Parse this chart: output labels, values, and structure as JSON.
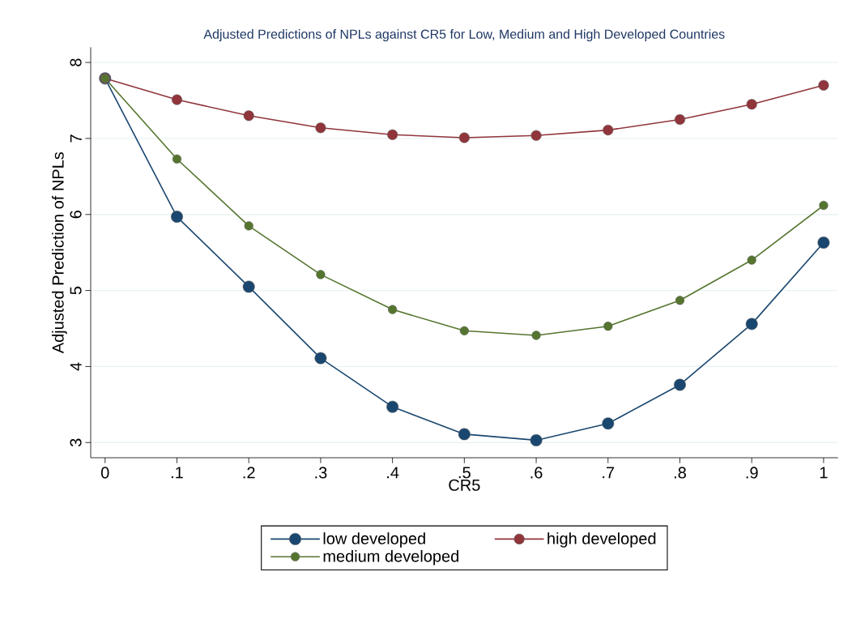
{
  "chart_data": {
    "type": "line",
    "title": "Adjusted Predictions of NPLs against CR5 for Low, Medium and High Developed Countries",
    "xlabel": "CR5",
    "ylabel": "Adjusted Prediction of NPLs",
    "x": [
      0,
      0.1,
      0.2,
      0.3,
      0.4,
      0.5,
      0.6,
      0.7,
      0.8,
      0.9,
      1
    ],
    "series": [
      {
        "name": "low developed",
        "color": "#1a476f",
        "values": [
          7.79,
          5.97,
          5.05,
          4.11,
          3.47,
          3.11,
          3.03,
          3.25,
          3.76,
          4.56,
          5.63
        ]
      },
      {
        "name": "high developed",
        "color": "#90353b",
        "values": [
          7.79,
          7.51,
          7.3,
          7.14,
          7.05,
          7.01,
          7.04,
          7.11,
          7.25,
          7.45,
          7.7
        ]
      },
      {
        "name": "medium developed",
        "color": "#55752f",
        "values": [
          7.79,
          6.73,
          5.85,
          5.21,
          4.75,
          4.47,
          4.41,
          4.53,
          4.87,
          5.4,
          6.12
        ]
      }
    ],
    "xlim": [
      -0.02,
      1.02
    ],
    "ylim": [
      2.8,
      8.2
    ],
    "xticks": [
      0,
      {
        "value": 0.1,
        "label": ".1"
      },
      {
        "value": 0.2,
        "label": ".2"
      },
      {
        "value": 0.3,
        "label": ".3"
      },
      {
        "value": 0.4,
        "label": ".4"
      },
      {
        "value": 0.5,
        "label": ".5"
      },
      {
        "value": 0.6,
        "label": ".6"
      },
      {
        "value": 0.7,
        "label": ".7"
      },
      {
        "value": 0.8,
        "label": ".8"
      },
      {
        "value": 0.9,
        "label": ".9"
      },
      1
    ],
    "yticks": [
      3,
      4,
      5,
      6,
      7,
      8
    ],
    "grid": "y",
    "legend": "bottom",
    "marker": "circle",
    "line_style": "solid"
  }
}
